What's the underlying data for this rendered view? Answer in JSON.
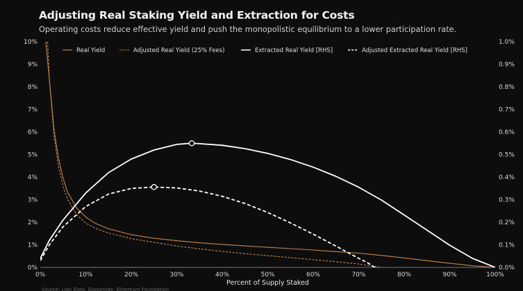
{
  "chart_data": {
    "type": "line",
    "title": "Adjusting Real Staking Yield and Extraction for Costs",
    "subtitle": "Operating costs reduce effective yield and push the monopolistic equilibrium to a lower participation rate.",
    "xlabel": "Percent of Supply Staked",
    "source": "Source: Lido Data, Glassnode, Ethereum Foundation",
    "xlim": [
      0,
      100
    ],
    "ylim_left": [
      0,
      10
    ],
    "ylim_right": [
      0,
      1.0
    ],
    "x_ticks": [
      "0%",
      "10%",
      "20%",
      "30%",
      "40%",
      "50%",
      "60%",
      "70%",
      "80%",
      "90%",
      "100%"
    ],
    "y_ticks_left": [
      "0%",
      "1%",
      "2%",
      "3%",
      "4%",
      "5%",
      "6%",
      "7%",
      "8%",
      "9%",
      "10%"
    ],
    "y_ticks_right": [
      "0.0%",
      "0.1%",
      "0.2%",
      "0.3%",
      "0.4%",
      "0.5%",
      "0.6%",
      "0.7%",
      "0.8%",
      "0.9%",
      "1.0%"
    ],
    "series": [
      {
        "name": "Real Yield",
        "axis": "left",
        "color": "#c8874a",
        "style": "solid",
        "x": [
          1.2,
          2,
          3,
          4,
          5,
          6,
          8,
          10,
          12,
          15,
          20,
          25,
          30,
          35,
          40,
          45,
          50,
          55,
          60,
          65,
          70,
          75,
          80,
          85,
          90,
          95,
          100
        ],
        "y": [
          10.0,
          8.33,
          6.11,
          4.83,
          3.95,
          3.33,
          2.63,
          2.23,
          1.96,
          1.71,
          1.45,
          1.29,
          1.18,
          1.09,
          1.02,
          0.95,
          0.89,
          0.83,
          0.77,
          0.7,
          0.63,
          0.53,
          0.42,
          0.3,
          0.18,
          0.07,
          0.0
        ]
      },
      {
        "name": "Adjusted Real Yield (25% Fees)",
        "axis": "left",
        "color": "#c8874a",
        "style": "dashed",
        "x": [
          1.6,
          2,
          3,
          4,
          5,
          6,
          8,
          10,
          12,
          15,
          20,
          25,
          30,
          35,
          40,
          45,
          50,
          55,
          60,
          65,
          70,
          73,
          75
        ],
        "y": [
          10.0,
          8.33,
          5.83,
          4.47,
          3.6,
          3.02,
          2.33,
          1.96,
          1.74,
          1.52,
          1.27,
          1.11,
          0.95,
          0.82,
          0.71,
          0.61,
          0.52,
          0.43,
          0.34,
          0.25,
          0.15,
          0.06,
          0.0
        ]
      },
      {
        "name": "Extracted Real Yield [RHS]",
        "axis": "right",
        "color": "#ffffff",
        "style": "solid",
        "x": [
          0,
          2,
          5,
          10,
          15,
          20,
          25,
          30,
          33.3,
          35,
          40,
          45,
          50,
          55,
          60,
          65,
          70,
          75,
          80,
          85,
          90,
          95,
          100
        ],
        "y": [
          0.04,
          0.12,
          0.21,
          0.33,
          0.42,
          0.48,
          0.52,
          0.545,
          0.55,
          0.548,
          0.541,
          0.526,
          0.505,
          0.478,
          0.444,
          0.403,
          0.355,
          0.298,
          0.232,
          0.165,
          0.098,
          0.04,
          0.0
        ]
      },
      {
        "name": "Adjusted Extracted Real Yield [RHS]",
        "axis": "right",
        "color": "#ffffff",
        "style": "dashed",
        "x": [
          0,
          2,
          5,
          10,
          15,
          20,
          25,
          30,
          35,
          40,
          45,
          50,
          55,
          60,
          65,
          70,
          72,
          75
        ],
        "y": [
          0.03,
          0.1,
          0.18,
          0.27,
          0.325,
          0.35,
          0.356,
          0.352,
          0.338,
          0.315,
          0.283,
          0.243,
          0.197,
          0.147,
          0.094,
          0.04,
          0.02,
          -0.02
        ]
      }
    ],
    "markers": [
      {
        "series": "Extracted Real Yield [RHS]",
        "x": 33.3,
        "y": 0.55,
        "label": "maximum"
      },
      {
        "series": "Adjusted Extracted Real Yield [RHS]",
        "x": 25,
        "y": 0.356,
        "label": "maximum"
      }
    ],
    "legend_position": "top",
    "grid": false
  }
}
